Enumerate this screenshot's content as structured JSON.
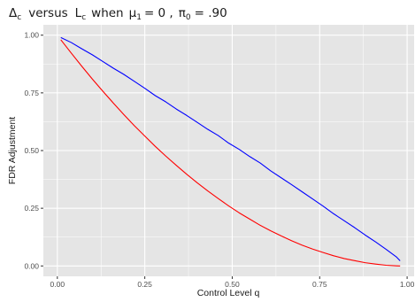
{
  "chart_data": {
    "type": "line",
    "title": {
      "delta": "Δ",
      "delta_sub": "c",
      "versus": "versus",
      "l": "L",
      "l_sub": "c",
      "when": "when",
      "mu": "μ",
      "mu_sub": "1",
      "mu_val": "= 0 ,",
      "pi": "π",
      "pi_sub": "0",
      "pi_val": "= .90"
    },
    "xlabel": "Control Level q",
    "ylabel": "FDR Adjustment",
    "xlim": [
      -0.04,
      1.02
    ],
    "ylim": [
      -0.045,
      1.045
    ],
    "x_ticks": [
      0,
      0.25,
      0.5,
      0.75,
      1
    ],
    "x_tick_labels": [
      "0.00",
      "0.25",
      "0.50",
      "0.75",
      "1.00"
    ],
    "y_ticks": [
      0,
      0.25,
      0.5,
      0.75,
      1
    ],
    "y_tick_labels": [
      "0.00",
      "0.25",
      "0.50",
      "0.75",
      "1.00"
    ],
    "grid": true,
    "colors": {
      "panel": "#e5e5e5",
      "grid": "#ffffff",
      "blue_series": "#0000ff",
      "red_series": "#ff0000"
    },
    "x": [
      0.01,
      0.04,
      0.07,
      0.1,
      0.13,
      0.16,
      0.19,
      0.22,
      0.25,
      0.28,
      0.31,
      0.34,
      0.37,
      0.4,
      0.43,
      0.46,
      0.49,
      0.52,
      0.55,
      0.58,
      0.61,
      0.64,
      0.67,
      0.7,
      0.73,
      0.76,
      0.79,
      0.82,
      0.85,
      0.88,
      0.91,
      0.94,
      0.97,
      0.98
    ],
    "series": [
      {
        "color": "#0000ff",
        "values": [
          0.99,
          0.968,
          0.941,
          0.915,
          0.886,
          0.857,
          0.83,
          0.8,
          0.77,
          0.738,
          0.711,
          0.68,
          0.652,
          0.622,
          0.592,
          0.565,
          0.532,
          0.505,
          0.474,
          0.446,
          0.412,
          0.382,
          0.352,
          0.321,
          0.29,
          0.259,
          0.226,
          0.196,
          0.166,
          0.134,
          0.104,
          0.072,
          0.038,
          0.022
        ]
      },
      {
        "color": "#ff0000",
        "values": [
          0.98,
          0.922,
          0.865,
          0.81,
          0.757,
          0.706,
          0.656,
          0.608,
          0.563,
          0.518,
          0.476,
          0.436,
          0.397,
          0.36,
          0.325,
          0.292,
          0.26,
          0.23,
          0.203,
          0.176,
          0.152,
          0.13,
          0.109,
          0.09,
          0.073,
          0.058,
          0.044,
          0.032,
          0.023,
          0.014,
          0.008,
          0.003,
          0.0005,
          0.0
        ]
      }
    ]
  }
}
